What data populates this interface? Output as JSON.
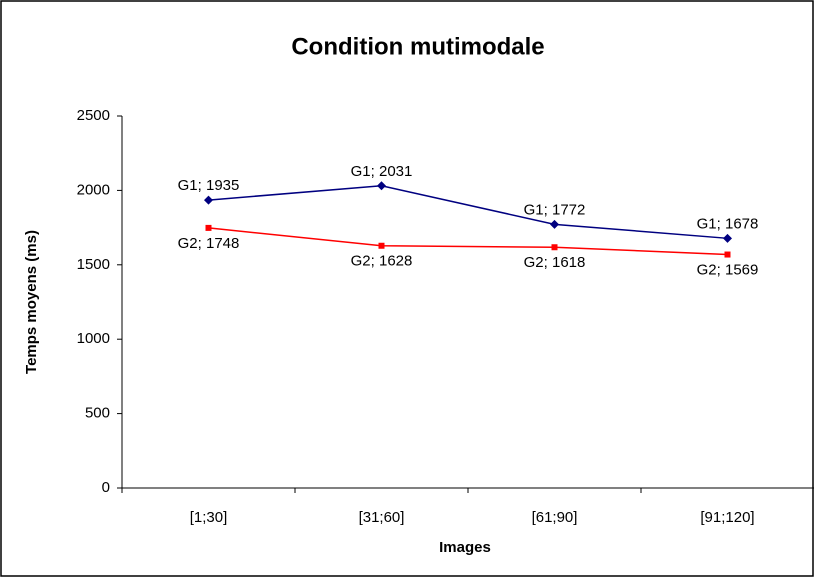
{
  "chart_data": {
    "type": "line",
    "title": "Condition mutimodale",
    "x_label": "Images",
    "y_label": "Temps moyens (ms)",
    "categories": [
      "[1;30]",
      "[31;60]",
      "[61;90]",
      "[91;120]"
    ],
    "series": [
      {
        "color": "#000080",
        "marker": "diamond",
        "values": [
          1935,
          2031,
          1772,
          1678
        ],
        "value_labels": [
          "G1; 1935",
          "G1; 2031",
          "G1; 1772",
          "G1; 1678"
        ]
      },
      {
        "color": "#ff0000",
        "marker": "square",
        "values": [
          1748,
          1628,
          1618,
          1569
        ],
        "value_labels": [
          "G2; 1748",
          "G2; 1628",
          "G2; 1618",
          "G2; 1569"
        ]
      }
    ],
    "ylim": [
      0,
      2500
    ],
    "yticks": [
      0,
      500,
      1000,
      1500,
      2000,
      2500
    ],
    "grid": false
  }
}
